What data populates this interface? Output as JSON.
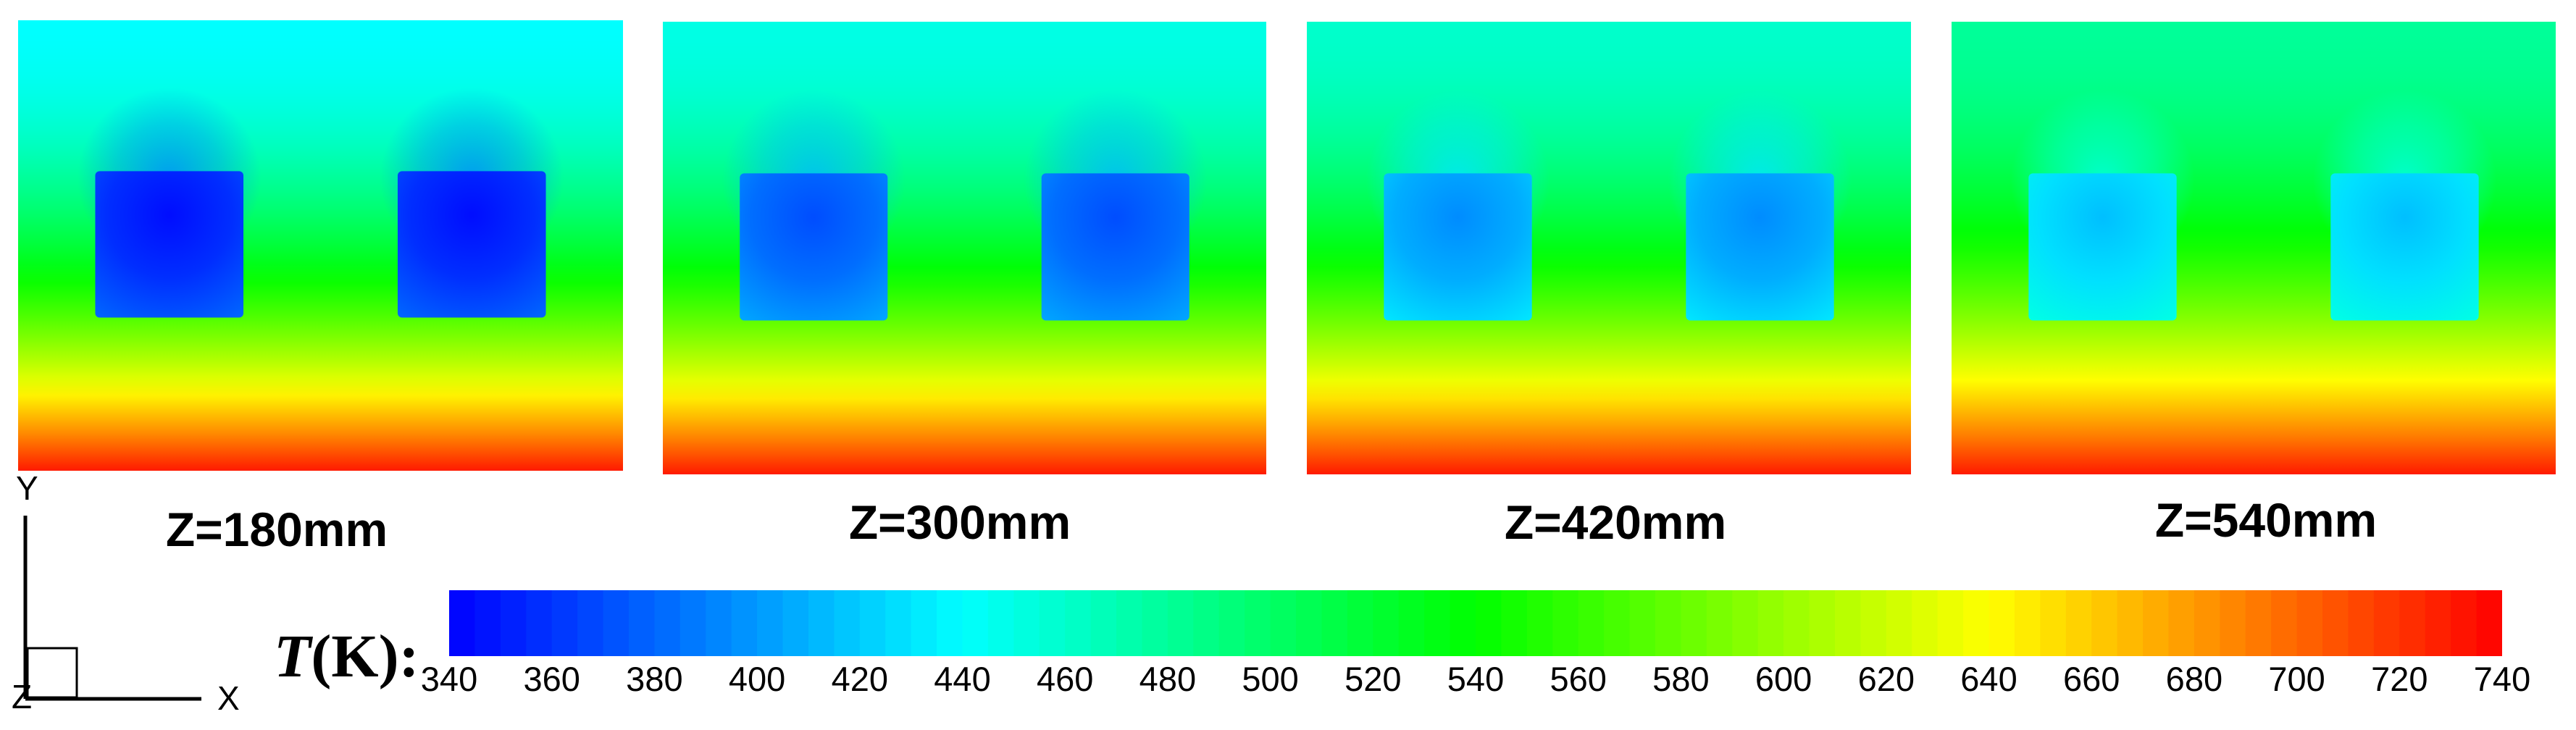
{
  "chart_data": {
    "type": "heatmap",
    "colormap": [
      "#0000ff",
      "#00ffff",
      "#00ff00",
      "#ffff00",
      "#ff0000"
    ],
    "colorbar": {
      "title": "T(K):",
      "title_symbol": "T",
      "title_unit": "(K):",
      "min": 340,
      "max": 740,
      "ticks": [
        "340",
        "360",
        "380",
        "400",
        "420",
        "440",
        "460",
        "480",
        "500",
        "520",
        "540",
        "560",
        "580",
        "600",
        "620",
        "640",
        "660",
        "680",
        "700",
        "720",
        "740"
      ]
    },
    "panels": [
      {
        "label": "Z=180mm",
        "top_T": 440,
        "bottom_T": 730,
        "block_T": 350
      },
      {
        "label": "Z=300mm",
        "top_T": 450,
        "bottom_T": 730,
        "block_T": 375
      },
      {
        "label": "Z=420mm",
        "top_T": 460,
        "bottom_T": 730,
        "block_T": 400
      },
      {
        "label": "Z=540mm",
        "top_T": 480,
        "bottom_T": 730,
        "block_T": 420
      }
    ]
  },
  "axes": {
    "x_label": "X",
    "y_label": "Y",
    "z_label": "Z"
  }
}
